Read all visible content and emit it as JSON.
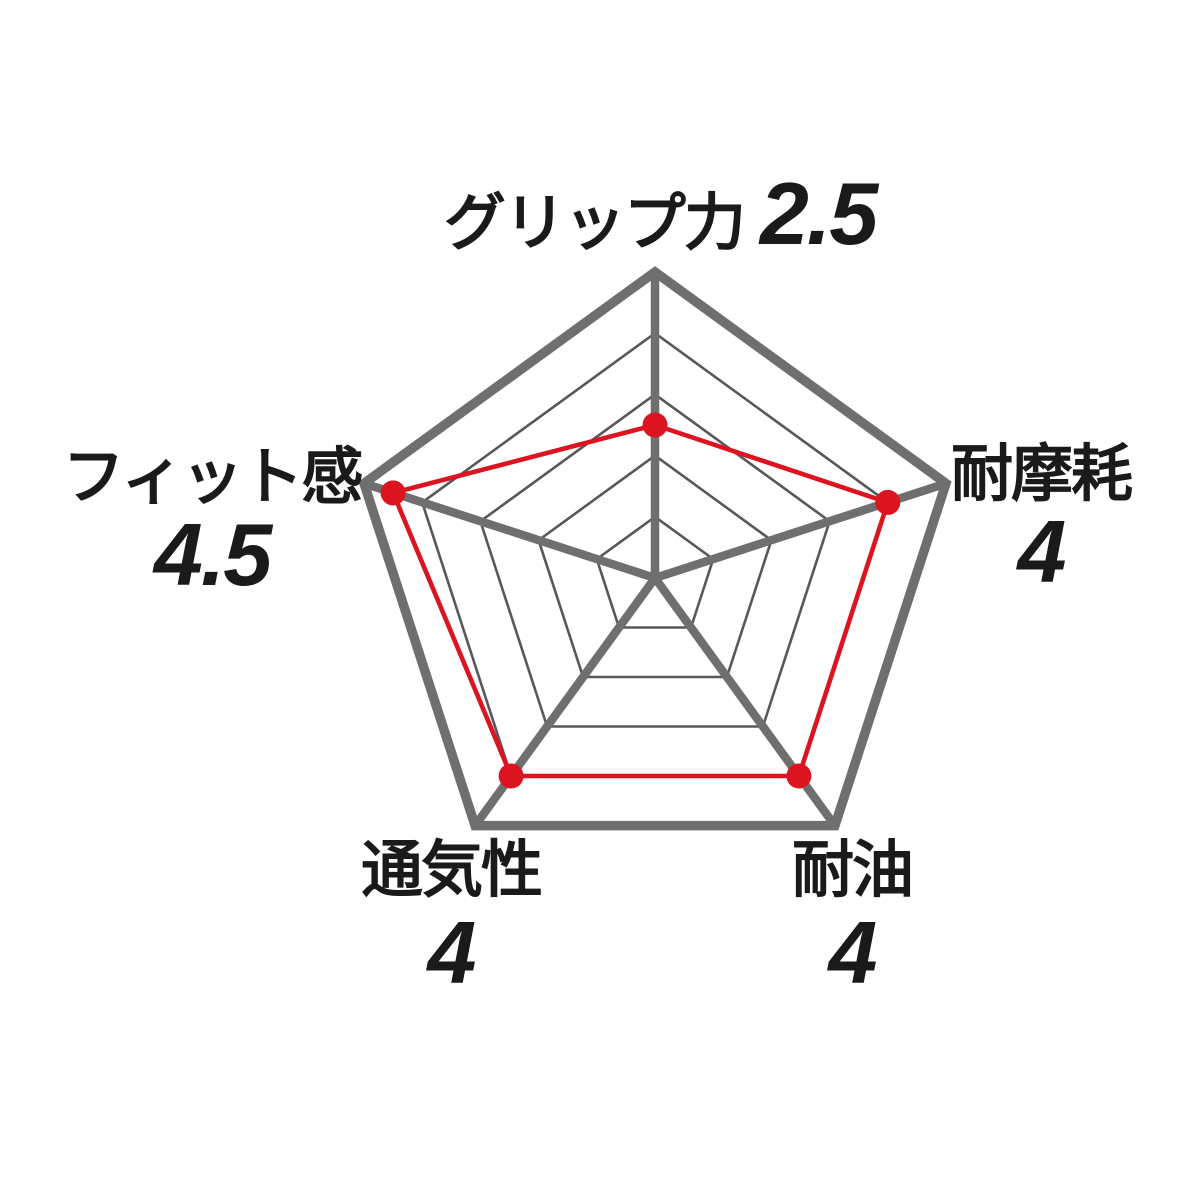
{
  "chart_data": {
    "type": "radar",
    "title": "",
    "max": 5,
    "levels": 5,
    "axes": [
      {
        "id": "grip",
        "label": "グリップ力",
        "value": 2.5,
        "value_display": "2.5"
      },
      {
        "id": "wear-resistance",
        "label": "耐摩耗",
        "value": 4,
        "value_display": "4"
      },
      {
        "id": "oil-resistance",
        "label": "耐油",
        "value": 4,
        "value_display": "4"
      },
      {
        "id": "breathability",
        "label": "通気性",
        "value": 4,
        "value_display": "4"
      },
      {
        "id": "fit",
        "label": "フィット感",
        "value": 4.5,
        "value_display": "4.5"
      }
    ],
    "colors": {
      "frame": "#6f6f6f",
      "grid": "#58585a",
      "data": "#dc1420",
      "text": "#1a1a1a",
      "background": "#ffffff"
    },
    "layout_hints": {
      "grid_shape": "pentagon",
      "grid_on": true,
      "legend": "none",
      "value_label_position": "next to axis name"
    }
  }
}
